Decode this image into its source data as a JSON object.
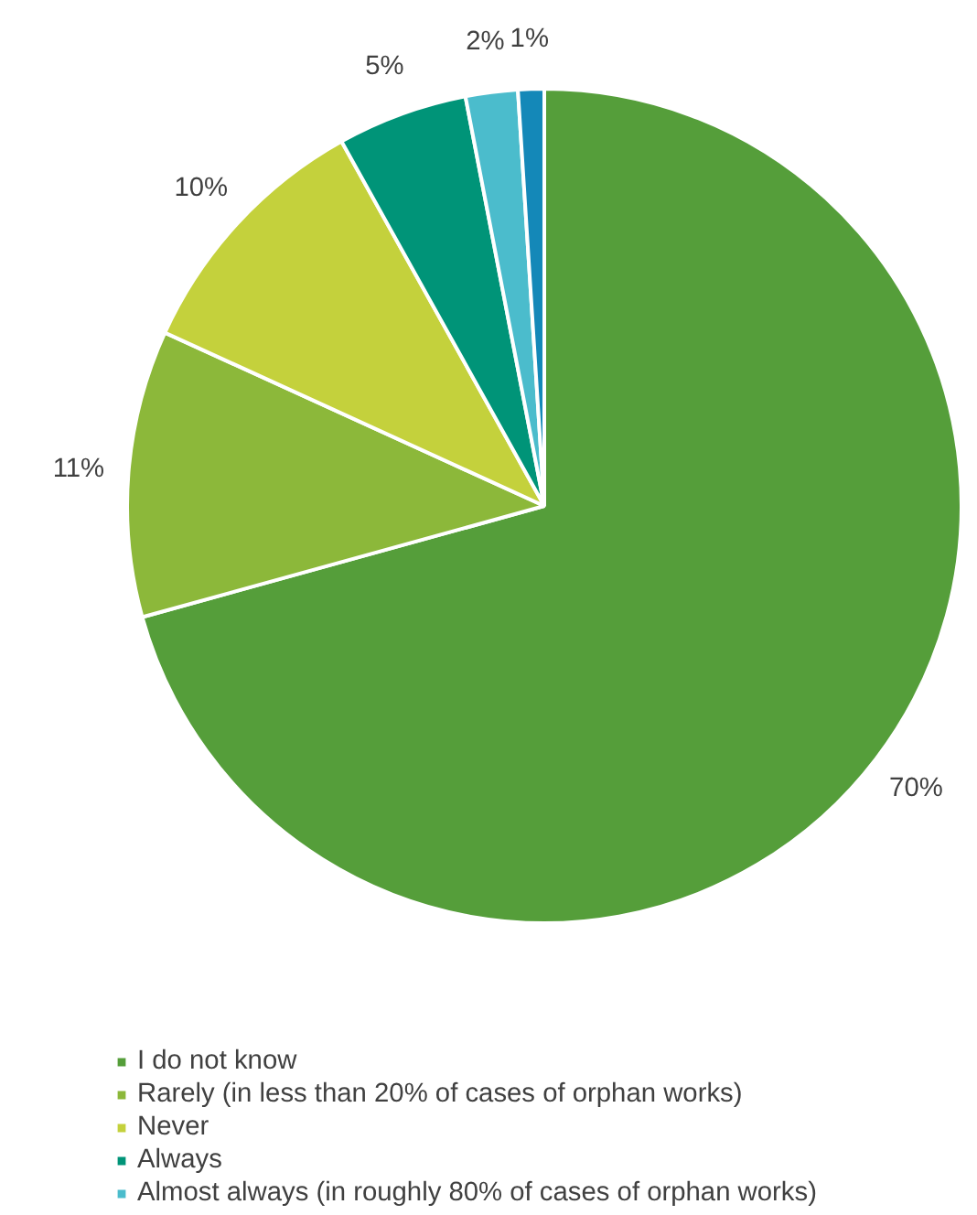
{
  "chart_data": {
    "type": "pie",
    "categories": [
      "I do not know",
      "Rarely (in less than 20% of cases of orphan works)",
      "Never",
      "Always",
      "Almost always (in roughly 80% of cases of orphan works)",
      null
    ],
    "values": [
      70,
      11,
      10,
      5,
      2,
      1
    ],
    "colors": [
      "#559e3a",
      "#8cb83a",
      "#c4d13c",
      "#009478",
      "#4bbccc",
      "#1488b8"
    ],
    "value_labels": [
      "70%",
      "11%",
      "10%",
      "5%",
      "2%",
      "1%"
    ],
    "legend": "bottom"
  }
}
